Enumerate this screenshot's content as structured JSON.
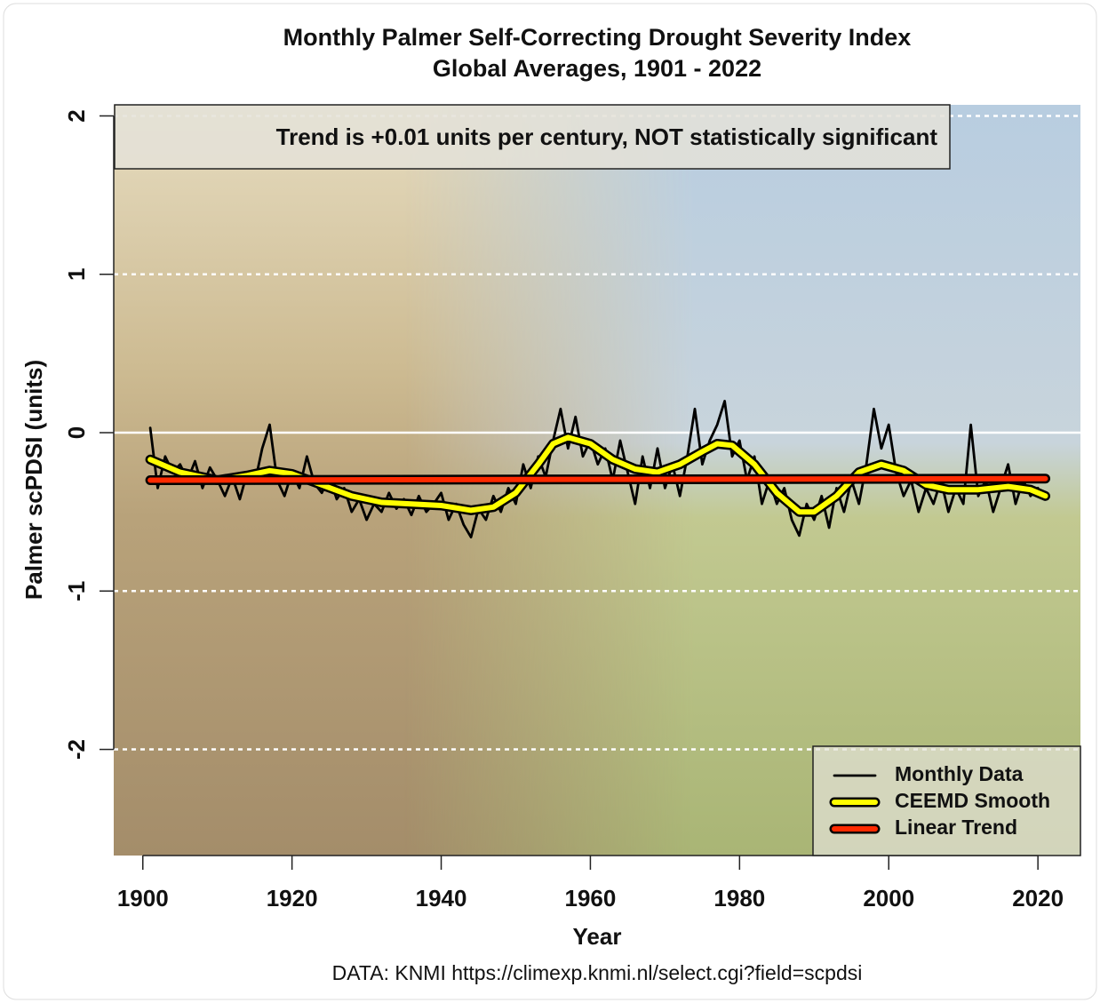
{
  "chart_data": {
    "type": "line",
    "title": "Monthly Palmer Self-Correcting Drought Severity Index",
    "subtitle": "Global Averages, 1901 - 2022",
    "x_label": "Year",
    "y_label": "Palmer scPDSI (units)",
    "annotation": "Trend is +0.01 units per century, NOT statistically significant",
    "source": "DATA: KNMI https://climexp.knmi.nl/select.cgi?field=scpdsi",
    "xlim": [
      1896.1,
      2025.7
    ],
    "ylim": [
      -2.67,
      2.07
    ],
    "xticks": [
      1900,
      1920,
      1940,
      1960,
      1980,
      2000,
      2020
    ],
    "yticks": [
      -2,
      -1,
      0,
      1,
      2
    ],
    "grid": true,
    "legend": "bottom-right",
    "series": [
      {
        "name": "Monthly Data",
        "color": "#000000",
        "x": [
          1901,
          1902,
          1903,
          1904,
          1905,
          1906,
          1907,
          1908,
          1909,
          1910,
          1911,
          1912,
          1913,
          1914,
          1915,
          1916,
          1917,
          1918,
          1919,
          1920,
          1921,
          1922,
          1923,
          1924,
          1925,
          1926,
          1927,
          1928,
          1929,
          1930,
          1931,
          1932,
          1933,
          1934,
          1935,
          1936,
          1937,
          1938,
          1939,
          1940,
          1941,
          1942,
          1943,
          1944,
          1945,
          1946,
          1947,
          1948,
          1949,
          1950,
          1951,
          1952,
          1953,
          1954,
          1955,
          1956,
          1957,
          1958,
          1959,
          1960,
          1961,
          1962,
          1963,
          1964,
          1965,
          1966,
          1967,
          1968,
          1969,
          1970,
          1971,
          1972,
          1973,
          1974,
          1975,
          1976,
          1977,
          1978,
          1979,
          1980,
          1981,
          1982,
          1983,
          1984,
          1985,
          1986,
          1987,
          1988,
          1989,
          1990,
          1991,
          1992,
          1993,
          1994,
          1995,
          1996,
          1997,
          1998,
          1999,
          2000,
          2001,
          2002,
          2003,
          2004,
          2005,
          2006,
          2007,
          2008,
          2009,
          2010,
          2011,
          2012,
          2013,
          2014,
          2015,
          2016,
          2017,
          2018,
          2019,
          2020,
          2021
        ],
        "values": [
          0.03,
          -0.35,
          -0.15,
          -0.25,
          -0.2,
          -0.3,
          -0.18,
          -0.35,
          -0.22,
          -0.3,
          -0.4,
          -0.28,
          -0.42,
          -0.25,
          -0.32,
          -0.1,
          0.05,
          -0.3,
          -0.4,
          -0.25,
          -0.35,
          -0.15,
          -0.32,
          -0.38,
          -0.28,
          -0.42,
          -0.35,
          -0.5,
          -0.42,
          -0.55,
          -0.45,
          -0.5,
          -0.38,
          -0.48,
          -0.42,
          -0.52,
          -0.4,
          -0.5,
          -0.45,
          -0.38,
          -0.55,
          -0.45,
          -0.58,
          -0.66,
          -0.48,
          -0.55,
          -0.4,
          -0.5,
          -0.35,
          -0.45,
          -0.2,
          -0.35,
          -0.15,
          -0.28,
          -0.05,
          0.15,
          -0.1,
          0.1,
          -0.15,
          -0.05,
          -0.2,
          -0.1,
          -0.3,
          -0.05,
          -0.25,
          -0.45,
          -0.15,
          -0.35,
          -0.1,
          -0.35,
          -0.2,
          -0.4,
          -0.15,
          0.15,
          -0.2,
          -0.05,
          0.05,
          0.2,
          -0.15,
          -0.05,
          -0.3,
          -0.15,
          -0.45,
          -0.3,
          -0.45,
          -0.35,
          -0.55,
          -0.65,
          -0.45,
          -0.55,
          -0.4,
          -0.6,
          -0.35,
          -0.5,
          -0.3,
          -0.45,
          -0.2,
          0.15,
          -0.1,
          0.05,
          -0.25,
          -0.4,
          -0.3,
          -0.5,
          -0.35,
          -0.45,
          -0.3,
          -0.5,
          -0.35,
          -0.45,
          0.05,
          -0.4,
          -0.3,
          -0.5,
          -0.35,
          -0.2,
          -0.45,
          -0.3,
          -0.4,
          -0.35,
          -0.42
        ]
      },
      {
        "name": "CEEMD Smooth",
        "color": "#ffff00",
        "x": [
          1901,
          1905,
          1910,
          1914,
          1917,
          1920,
          1924,
          1928,
          1932,
          1936,
          1940,
          1944,
          1947,
          1950,
          1953,
          1955,
          1957,
          1960,
          1963,
          1966,
          1969,
          1972,
          1975,
          1977,
          1979,
          1982,
          1985,
          1988,
          1990,
          1993,
          1996,
          1999,
          2002,
          2005,
          2008,
          2012,
          2016,
          2019,
          2021
        ],
        "values": [
          -0.17,
          -0.25,
          -0.3,
          -0.27,
          -0.24,
          -0.26,
          -0.33,
          -0.4,
          -0.44,
          -0.45,
          -0.46,
          -0.49,
          -0.47,
          -0.38,
          -0.2,
          -0.07,
          -0.03,
          -0.07,
          -0.17,
          -0.23,
          -0.25,
          -0.2,
          -0.12,
          -0.07,
          -0.08,
          -0.2,
          -0.38,
          -0.5,
          -0.5,
          -0.4,
          -0.25,
          -0.2,
          -0.24,
          -0.33,
          -0.36,
          -0.36,
          -0.34,
          -0.36,
          -0.4
        ]
      },
      {
        "name": "Linear Trend",
        "color": "#ff2a00",
        "x": [
          1901,
          2021
        ],
        "values": [
          -0.3,
          -0.29
        ]
      }
    ]
  }
}
